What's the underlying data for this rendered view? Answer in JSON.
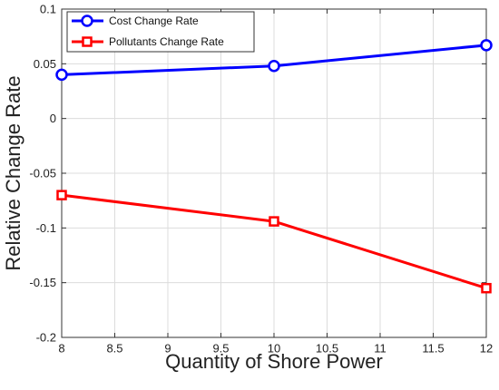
{
  "chart_data": {
    "type": "line",
    "title": "",
    "xlabel": "Quantity of Shore Power",
    "ylabel": "Relative Change Rate",
    "xlim": [
      8,
      12
    ],
    "ylim": [
      -0.2,
      0.1
    ],
    "xticks": [
      8,
      8.5,
      9,
      9.5,
      10,
      10.5,
      11,
      11.5,
      12
    ],
    "xtick_labels": [
      "8",
      "8.5",
      "9",
      "9.5",
      "10",
      "10.5",
      "11",
      "11.5",
      "12"
    ],
    "yticks": [
      0.1,
      0.05,
      0,
      -0.05,
      -0.1,
      -0.15,
      -0.2
    ],
    "ytick_labels": [
      "0.1",
      "0.05",
      "0",
      "-0.05",
      "-0.1",
      "-0.15",
      "-0.2"
    ],
    "grid": true,
    "legend_position": "top-left",
    "series": [
      {
        "name": "Cost Change Rate",
        "color": "#0000ff",
        "marker": "circle",
        "x": [
          8,
          10,
          12
        ],
        "y": [
          0.04,
          0.048,
          0.067
        ]
      },
      {
        "name": "Pollutants Change Rate",
        "color": "#ff0000",
        "marker": "square",
        "x": [
          8,
          10,
          12
        ],
        "y": [
          -0.07,
          -0.094,
          -0.155
        ]
      }
    ]
  }
}
